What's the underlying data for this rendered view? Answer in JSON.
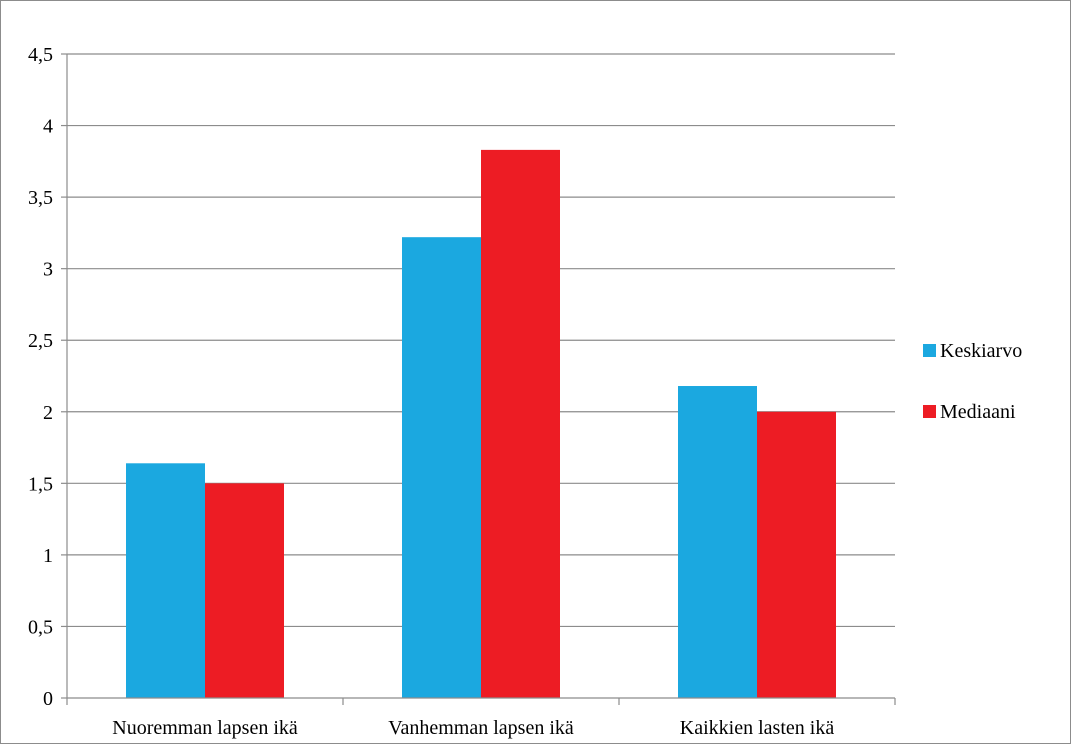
{
  "chart_data": {
    "type": "bar",
    "categories": [
      "Nuoremman lapsen ikä",
      "Vanhemman lapsen ikä",
      "Kaikkien lasten ikä"
    ],
    "series": [
      {
        "name": "Keskiarvo",
        "values": [
          1.64,
          3.22,
          2.18
        ],
        "color": "#1ba8e0"
      },
      {
        "name": "Mediaani",
        "values": [
          1.5,
          3.83,
          2.0
        ],
        "color": "#ed1c24"
      }
    ],
    "ylim": [
      0,
      4.5
    ],
    "yticks": [
      "0",
      "0,5",
      "1",
      "1,5",
      "2",
      "2,5",
      "3",
      "3,5",
      "4",
      "4,5"
    ],
    "ytick_values": [
      0,
      0.5,
      1,
      1.5,
      2,
      2.5,
      3,
      3.5,
      4,
      4.5
    ],
    "grid": true,
    "legend": "right",
    "gridline_color": "#8c8c8c"
  }
}
